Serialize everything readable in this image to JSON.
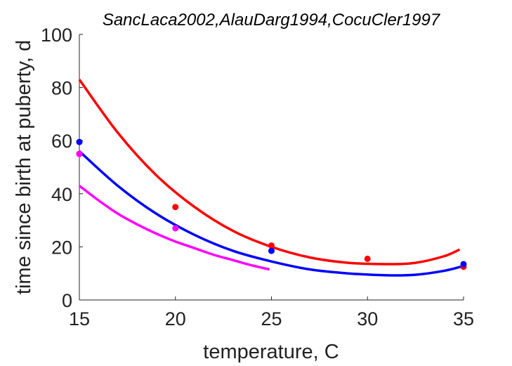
{
  "chart_data": {
    "type": "scatter",
    "title": "SancLaca2002,AlauDarg1994,CocuCler1997",
    "xlabel": "temperature, C",
    "ylabel": "time since birth at puberty, d",
    "xlim": [
      15,
      35
    ],
    "ylim": [
      0,
      100
    ],
    "xticks": [
      "15",
      "20",
      "25",
      "30",
      "35"
    ],
    "yticks": [
      "0",
      "20",
      "40",
      "60",
      "80",
      "100"
    ],
    "grid": false,
    "series": [
      {
        "color": "#ff0000",
        "points": [
          {
            "x": 15,
            "y": 55
          },
          {
            "x": 20,
            "y": 35
          },
          {
            "x": 25,
            "y": 20.5
          },
          {
            "x": 30,
            "y": 15.5
          },
          {
            "x": 35,
            "y": 12.5
          }
        ],
        "curve": [
          {
            "x": 15,
            "y": 83
          },
          {
            "x": 17,
            "y": 63
          },
          {
            "x": 19,
            "y": 47
          },
          {
            "x": 21,
            "y": 35
          },
          {
            "x": 23,
            "y": 26
          },
          {
            "x": 25,
            "y": 20
          },
          {
            "x": 27,
            "y": 16
          },
          {
            "x": 29,
            "y": 14
          },
          {
            "x": 31,
            "y": 13.5
          },
          {
            "x": 32.5,
            "y": 14
          },
          {
            "x": 34,
            "y": 16.5
          },
          {
            "x": 34.8,
            "y": 19
          }
        ]
      },
      {
        "color": "#0000ff",
        "points": [
          {
            "x": 15,
            "y": 59.5
          },
          {
            "x": 25,
            "y": 18.5
          },
          {
            "x": 35,
            "y": 13.5
          }
        ],
        "curve": [
          {
            "x": 15,
            "y": 56
          },
          {
            "x": 17,
            "y": 43
          },
          {
            "x": 19,
            "y": 32.5
          },
          {
            "x": 21,
            "y": 24.5
          },
          {
            "x": 23,
            "y": 18.5
          },
          {
            "x": 25,
            "y": 14.5
          },
          {
            "x": 27,
            "y": 11.5
          },
          {
            "x": 29,
            "y": 10
          },
          {
            "x": 31,
            "y": 9.3
          },
          {
            "x": 32.5,
            "y": 9.5
          },
          {
            "x": 34,
            "y": 11
          },
          {
            "x": 35,
            "y": 12.8
          }
        ]
      },
      {
        "color": "#ff00ff",
        "points": [
          {
            "x": 15,
            "y": 55
          },
          {
            "x": 20,
            "y": 27
          }
        ],
        "curve": [
          {
            "x": 15,
            "y": 43
          },
          {
            "x": 16,
            "y": 37.5
          },
          {
            "x": 17,
            "y": 32.5
          },
          {
            "x": 18,
            "y": 28.5
          },
          {
            "x": 19,
            "y": 25
          },
          {
            "x": 20,
            "y": 22
          },
          {
            "x": 21,
            "y": 19.5
          },
          {
            "x": 22,
            "y": 17
          },
          {
            "x": 23,
            "y": 15
          },
          {
            "x": 24,
            "y": 13
          },
          {
            "x": 24.9,
            "y": 11.5
          }
        ]
      }
    ]
  }
}
